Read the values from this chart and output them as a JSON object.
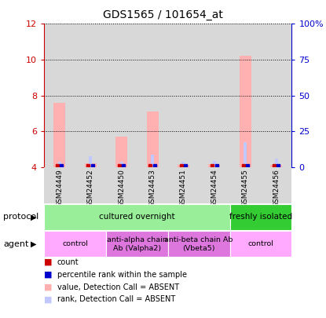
{
  "title": "GDS1565 / 101654_at",
  "samples": [
    "GSM24449",
    "GSM24452",
    "GSM24450",
    "GSM24453",
    "GSM24451",
    "GSM24454",
    "GSM24455",
    "GSM24456"
  ],
  "bar_values": [
    7.6,
    4.2,
    5.7,
    7.1,
    4.1,
    4.15,
    10.2,
    4.1
  ],
  "rank_values": [
    4.3,
    4.6,
    4.3,
    4.7,
    4.3,
    4.35,
    5.4,
    4.45
  ],
  "bar_bottom": 4.0,
  "left_ylim": [
    4,
    12
  ],
  "left_yticks": [
    4,
    6,
    8,
    10,
    12
  ],
  "right_yticks": [
    0,
    25,
    50,
    75,
    100
  ],
  "bar_color": "#ffb0b0",
  "rank_bar_color": "#c0c8ff",
  "count_color": "#cc0000",
  "rank_color": "#0000cc",
  "bar_width": 0.38,
  "rank_bar_width": 0.1,
  "col_bg_color": "#d8d8d8",
  "protocol_labels": [
    {
      "text": "cultured overnight",
      "start": 0,
      "end": 6,
      "color": "#99ee99"
    },
    {
      "text": "freshly isolated",
      "start": 6,
      "end": 8,
      "color": "#33cc33"
    }
  ],
  "agent_labels": [
    {
      "text": "control",
      "start": 0,
      "end": 2,
      "color": "#ffaaff"
    },
    {
      "text": "anti-alpha chain\nAb (Valpha2)",
      "start": 2,
      "end": 4,
      "color": "#dd77dd"
    },
    {
      "text": "anti-beta chain Ab\n(Vbeta5)",
      "start": 4,
      "end": 6,
      "color": "#dd77dd"
    },
    {
      "text": "control",
      "start": 6,
      "end": 8,
      "color": "#ffaaff"
    }
  ],
  "left_axis_color": "#cc0000",
  "right_axis_color": "#0000cc",
  "background_color": "#ffffff"
}
